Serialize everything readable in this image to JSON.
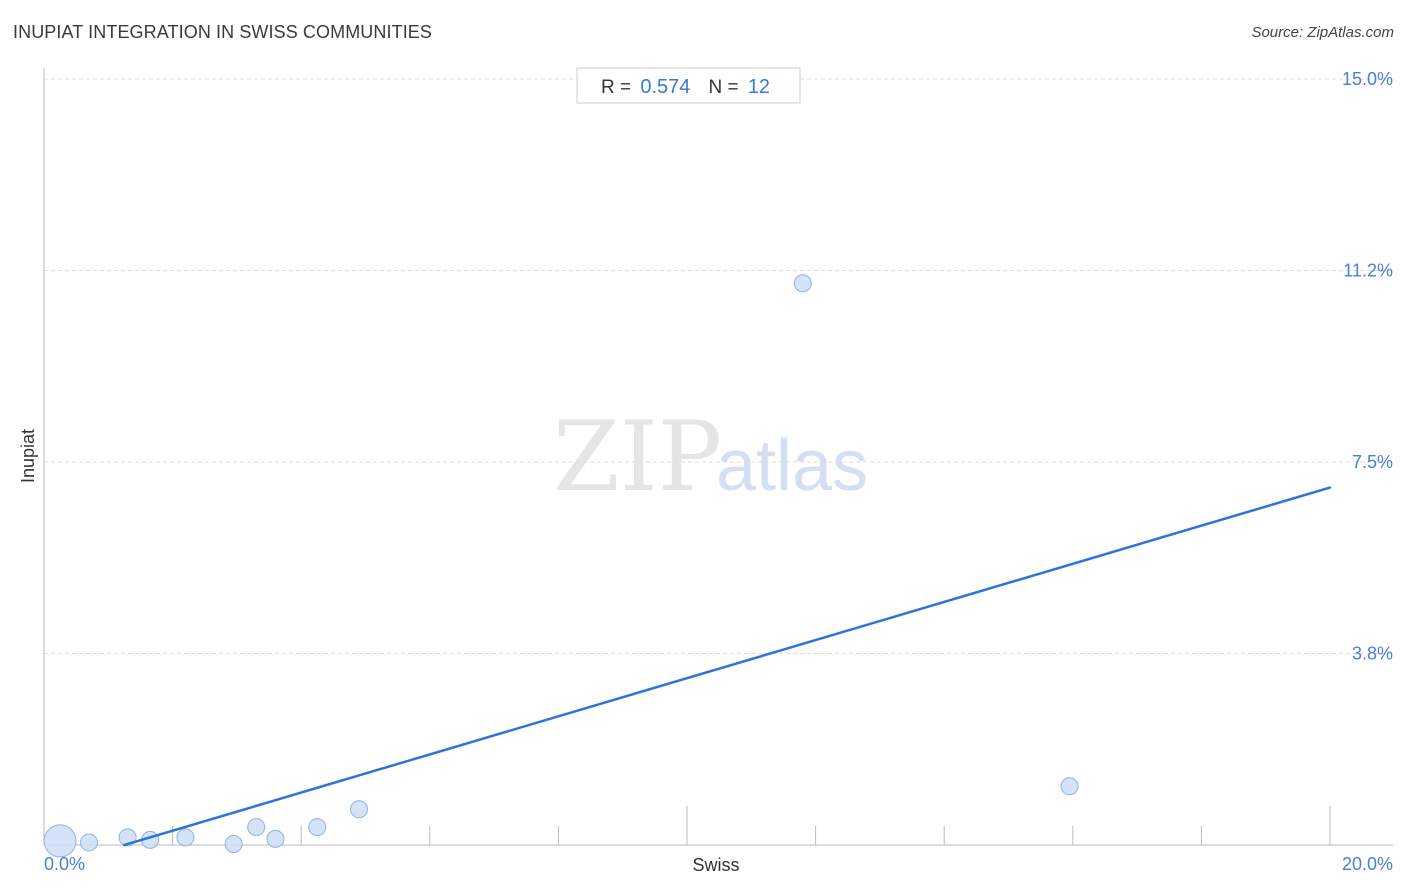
{
  "header": {
    "title": "INUPIAT INTEGRATION IN SWISS COMMUNITIES",
    "source": "Source: ZipAtlas.com"
  },
  "watermark": {
    "zip": "ZIP",
    "atlas": "atlas"
  },
  "stats": {
    "r_label": "R = ",
    "r_value": "0.574",
    "n_label": "N = ",
    "n_value": "12"
  },
  "colors": {
    "point_fill": "#cfe0f7",
    "point_stroke": "#8fb3e3",
    "trend_line": "#2e74d6",
    "tick_label": "#4a7fd6",
    "grid": "#dddddd"
  },
  "chart_data": {
    "type": "scatter",
    "title": "INUPIAT INTEGRATION IN SWISS COMMUNITIES",
    "xlabel": "Swiss",
    "ylabel": "Inupiat",
    "xlim": [
      0,
      20
    ],
    "ylim": [
      0,
      15
    ],
    "x_tick_labels": [
      {
        "value": 0,
        "label": "0.0%"
      },
      {
        "value": 20,
        "label": "20.0%"
      }
    ],
    "y_tick_labels": [
      {
        "value": 3.75,
        "label": "3.8%"
      },
      {
        "value": 7.5,
        "label": "7.5%"
      },
      {
        "value": 11.25,
        "label": "11.2%"
      },
      {
        "value": 15,
        "label": "15.0%"
      }
    ],
    "grid": true,
    "points": [
      {
        "x": 0.25,
        "y": 0.08,
        "size": "large"
      },
      {
        "x": 0.7,
        "y": 0.05,
        "size": "small"
      },
      {
        "x": 1.3,
        "y": 0.15,
        "size": "small"
      },
      {
        "x": 1.65,
        "y": 0.1,
        "size": "small"
      },
      {
        "x": 2.2,
        "y": 0.15,
        "size": "small"
      },
      {
        "x": 2.95,
        "y": 0.02,
        "size": "small"
      },
      {
        "x": 3.3,
        "y": 0.35,
        "size": "small"
      },
      {
        "x": 3.6,
        "y": 0.12,
        "size": "small"
      },
      {
        "x": 4.25,
        "y": 0.35,
        "size": "small"
      },
      {
        "x": 4.9,
        "y": 0.7,
        "size": "small"
      },
      {
        "x": 11.8,
        "y": 11.0,
        "size": "small"
      },
      {
        "x": 15.95,
        "y": 1.15,
        "size": "small"
      }
    ],
    "trendline": {
      "x": [
        1.25,
        20.0
      ],
      "y": [
        0.0,
        7.0
      ]
    },
    "r": 0.574,
    "n": 12
  }
}
